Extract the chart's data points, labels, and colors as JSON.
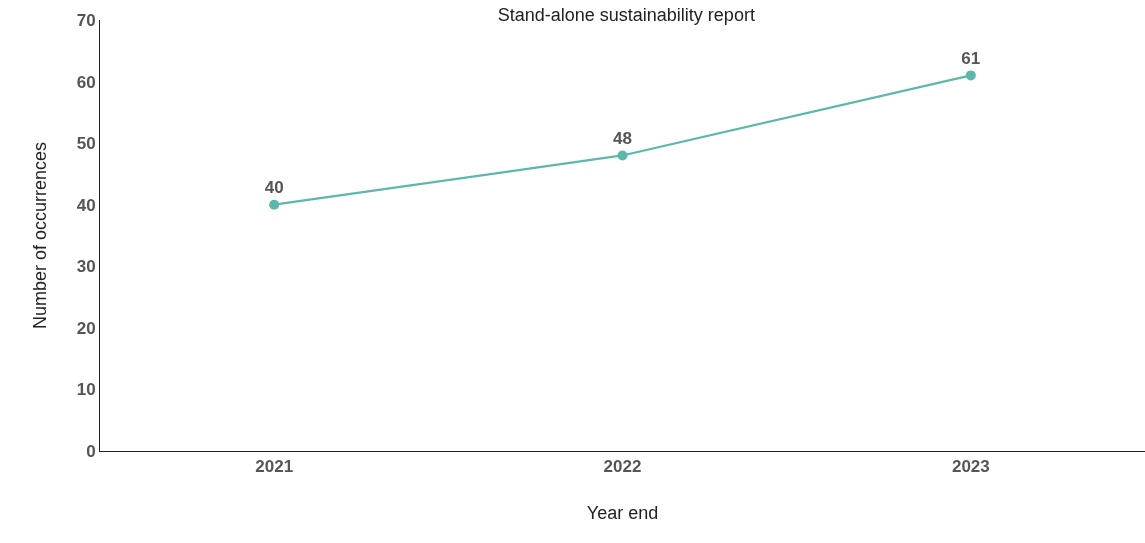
{
  "chart_data": {
    "type": "line",
    "title": "Stand-alone sustainability report",
    "xlabel": "Year end",
    "ylabel": "Number of occurrences",
    "categories": [
      "2021",
      "2022",
      "2023"
    ],
    "series": [
      {
        "color": "#5cb8a8",
        "values": [
          40,
          48,
          61
        ]
      }
    ],
    "ylim": [
      0,
      70
    ],
    "yticks": [
      0,
      10,
      20,
      30,
      40,
      50,
      60,
      70
    ],
    "legend": false,
    "marker": "circle",
    "line_style": "solid",
    "data_labels": true
  }
}
